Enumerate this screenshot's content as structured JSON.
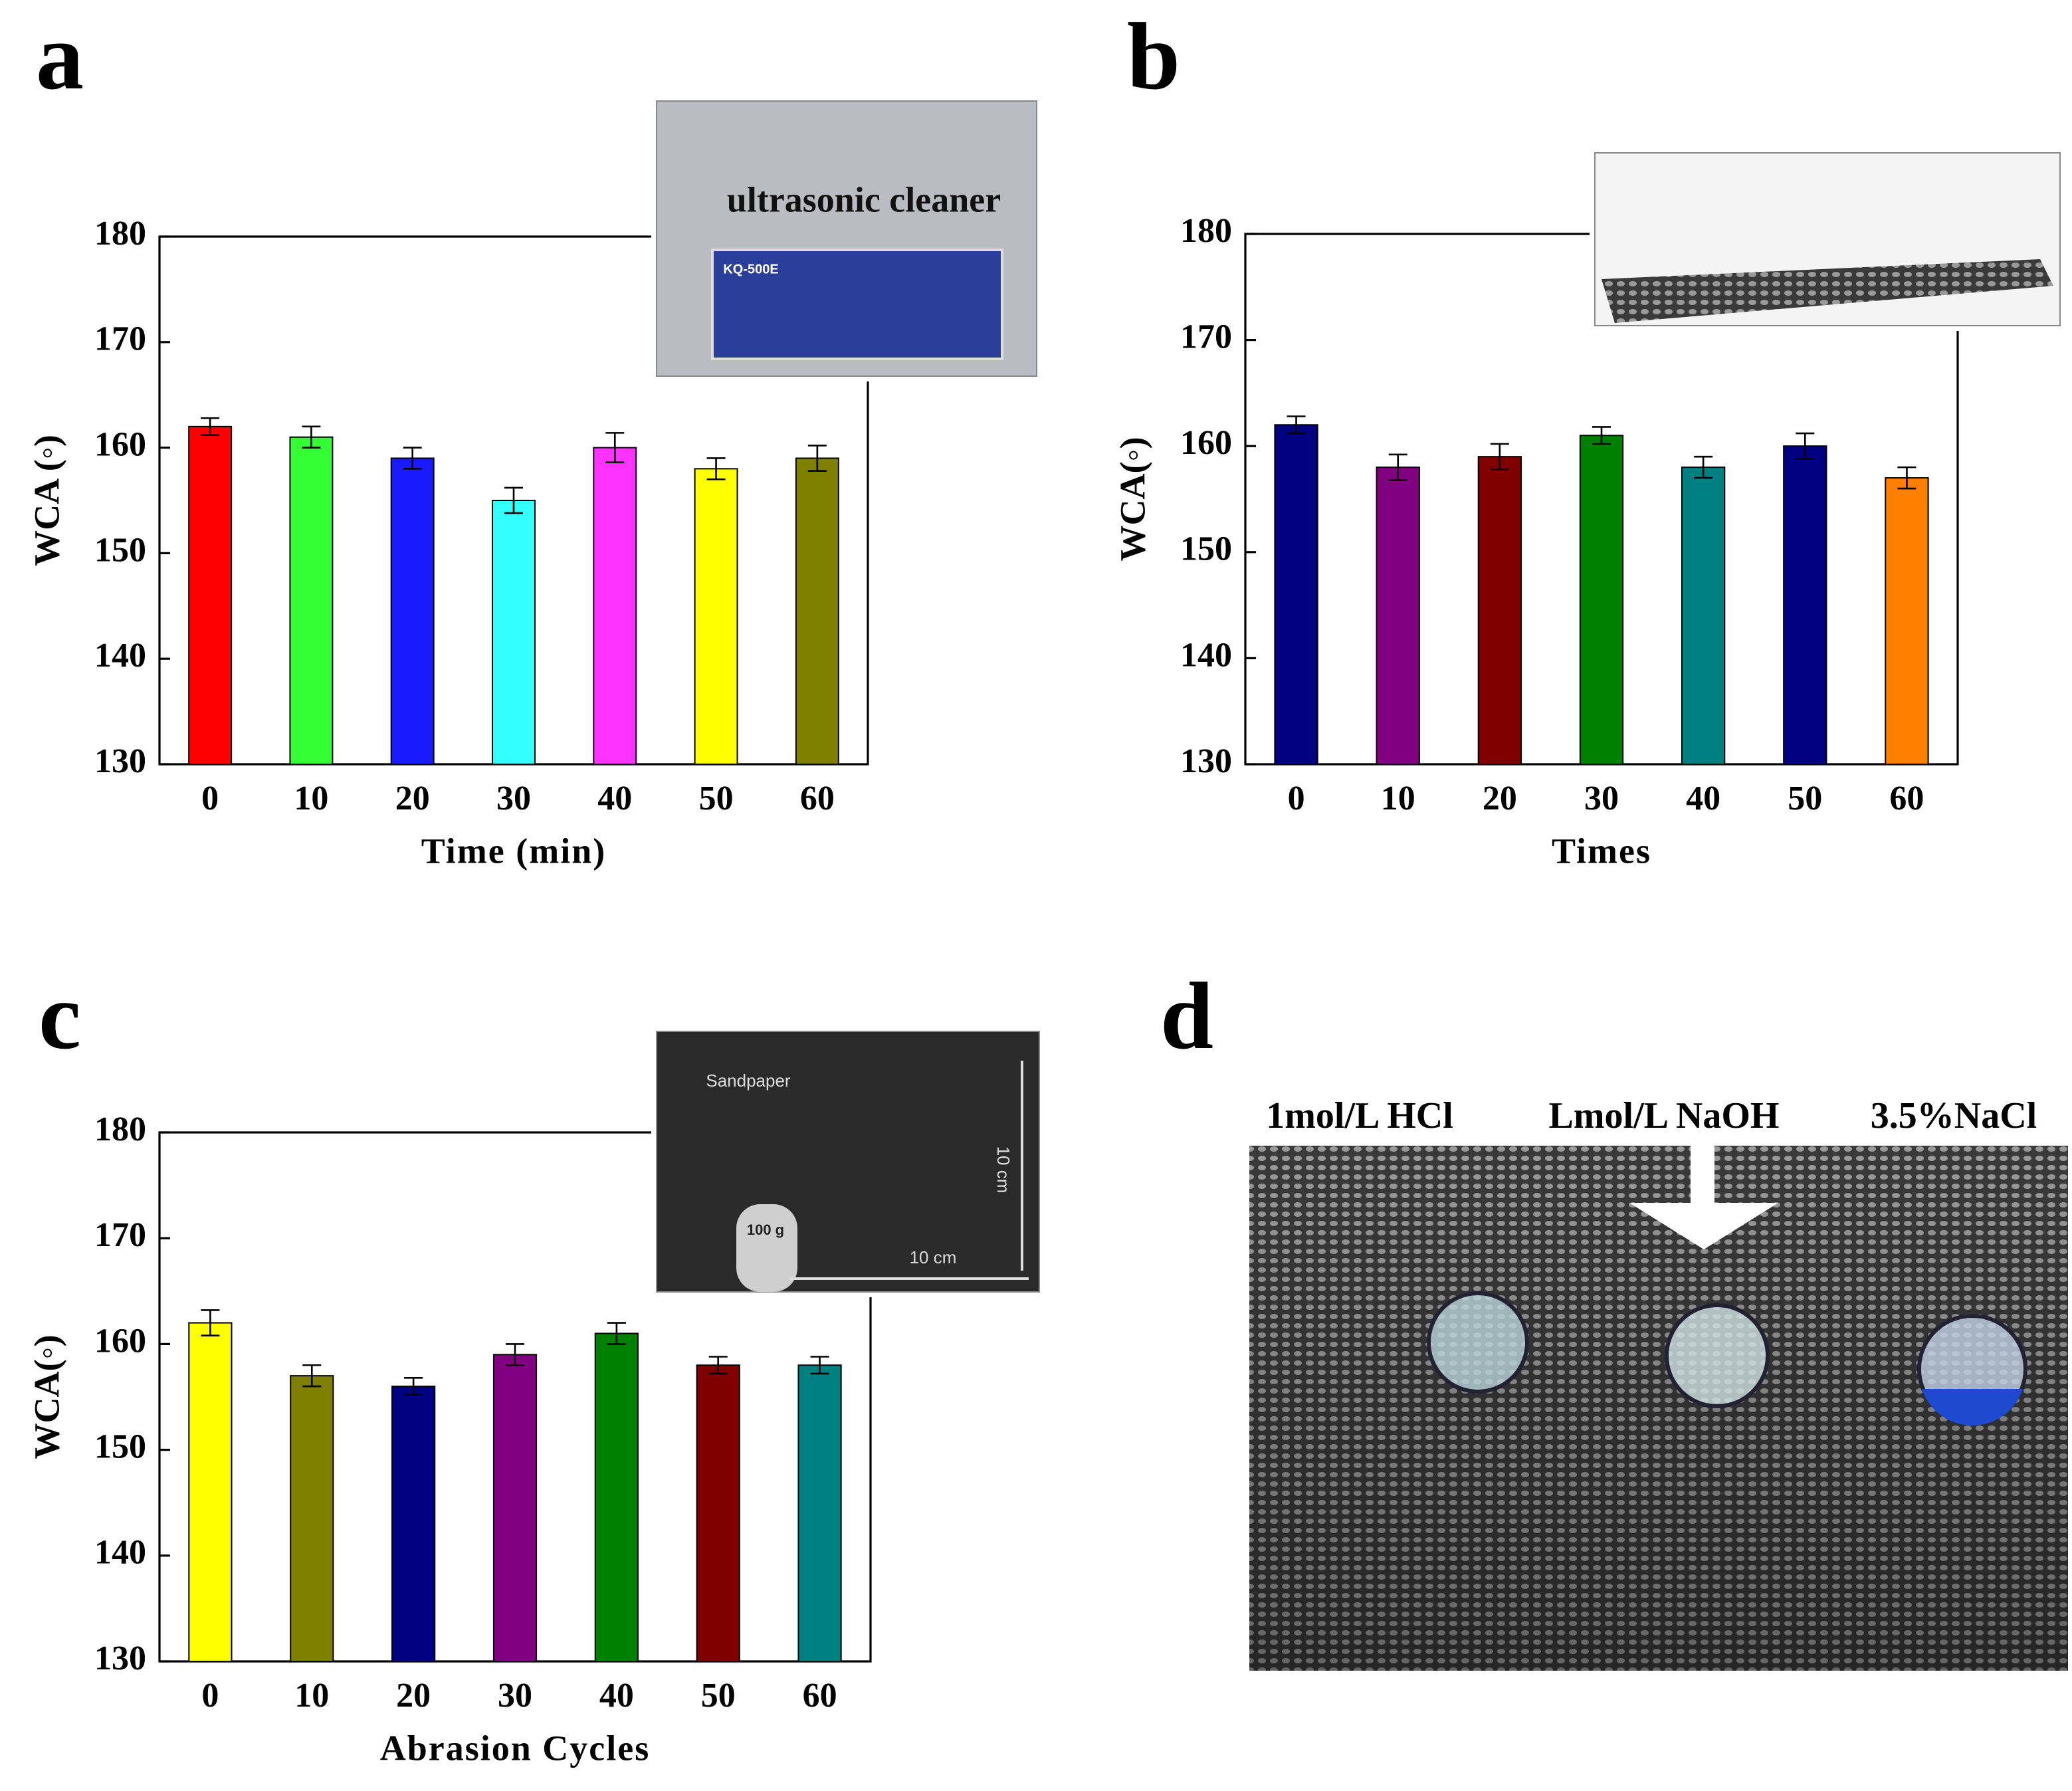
{
  "chart_data": [
    {
      "type": "bar",
      "label": "a",
      "xlabel": "Time (min)",
      "ylabel": "WCA (◦)",
      "categories": [
        "0",
        "10",
        "20",
        "30",
        "40",
        "50",
        "60"
      ],
      "values": [
        162,
        161,
        159,
        155,
        160,
        158,
        159
      ],
      "errors": [
        0.8,
        1.0,
        1.0,
        1.2,
        1.4,
        1.0,
        1.2
      ],
      "colors": [
        "#ff0000",
        "#33ff33",
        "#1a1aff",
        "#33ffff",
        "#ff33ff",
        "#ffff00",
        "#808000"
      ],
      "ylim": [
        130,
        180
      ],
      "yticks": [
        130,
        140,
        150,
        160,
        170,
        180
      ],
      "grid": false,
      "inset_texts": [
        "ultrasonic cleaner",
        "KQ-500E"
      ]
    },
    {
      "type": "bar",
      "label": "b",
      "xlabel": "Times",
      "ylabel": "WCA(◦)",
      "categories": [
        "0",
        "10",
        "20",
        "30",
        "40",
        "50",
        "60"
      ],
      "values": [
        162,
        158,
        159,
        161,
        158,
        160,
        157
      ],
      "errors": [
        0.8,
        1.2,
        1.2,
        0.8,
        1.0,
        1.2,
        1.0
      ],
      "colors": [
        "#000080",
        "#800080",
        "#800000",
        "#008000",
        "#008080",
        "#000080",
        "#ff8000"
      ],
      "ylim": [
        130,
        180
      ],
      "yticks": [
        130,
        140,
        150,
        160,
        170,
        180
      ],
      "grid": false,
      "inset_texts": []
    },
    {
      "type": "bar",
      "label": "c",
      "xlabel": "Abrasion Cycles",
      "ylabel": "WCA(◦)",
      "categories": [
        "0",
        "10",
        "20",
        "30",
        "40",
        "50",
        "60"
      ],
      "values": [
        162,
        157,
        156,
        159,
        161,
        158,
        158
      ],
      "errors": [
        1.2,
        1.0,
        0.8,
        1.0,
        1.0,
        0.8,
        0.8
      ],
      "colors": [
        "#ffff00",
        "#808000",
        "#000080",
        "#800080",
        "#008000",
        "#800000",
        "#008080"
      ],
      "ylim": [
        130,
        180
      ],
      "yticks": [
        130,
        140,
        150,
        160,
        170,
        180
      ],
      "grid": false,
      "inset_texts": [
        "Sandpaper",
        "100 g",
        "10 cm",
        "10 cm"
      ]
    }
  ],
  "photo": {
    "label": "d",
    "captions": [
      "1mol/L HCl",
      "Lmol/L NaOH",
      "3.5%NaCl"
    ]
  }
}
